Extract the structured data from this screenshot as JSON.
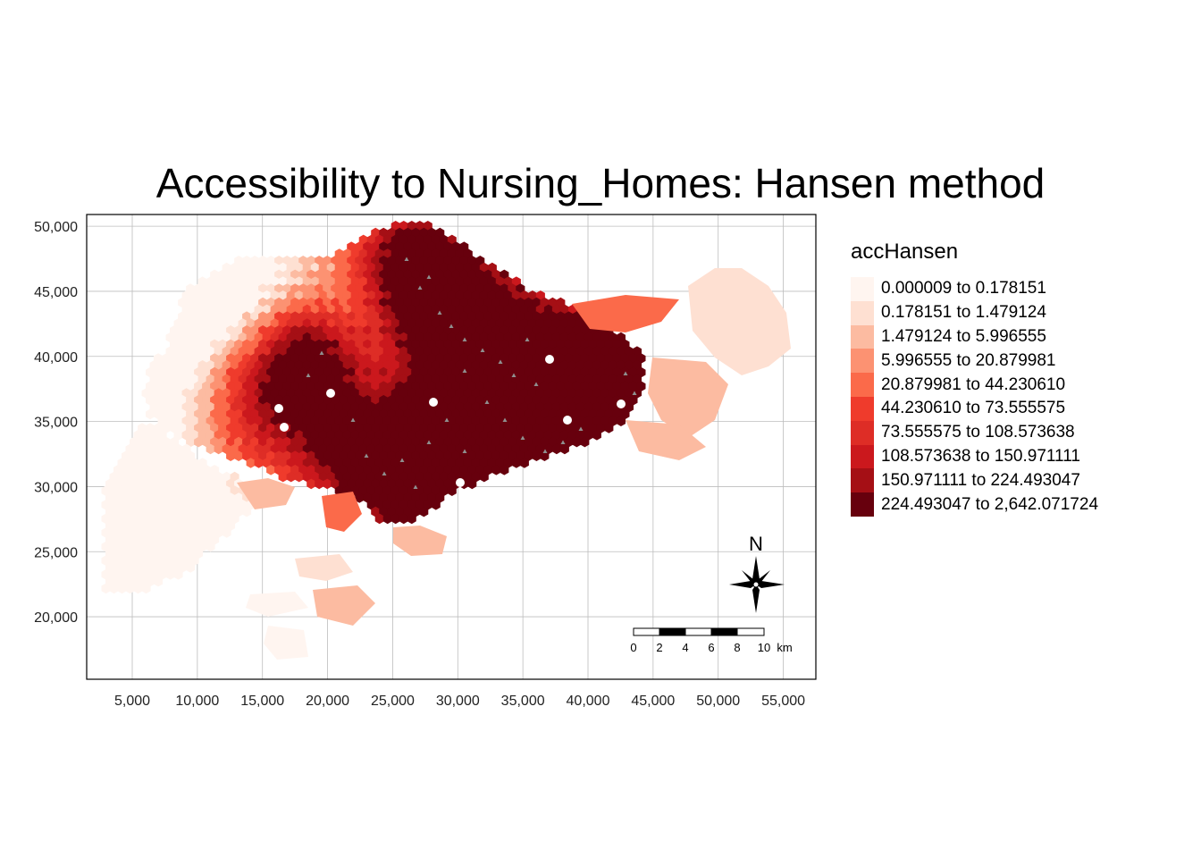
{
  "title": "Accessibility to Nursing_Homes: Hansen method",
  "axes": {
    "x_ticks": [
      "5,000",
      "10,000",
      "15,000",
      "20,000",
      "25,000",
      "30,000",
      "35,000",
      "40,000",
      "45,000",
      "50,000",
      "55,000"
    ],
    "x_values": [
      5000,
      10000,
      15000,
      20000,
      25000,
      30000,
      35000,
      40000,
      45000,
      50000,
      55000
    ],
    "y_ticks": [
      "50,000",
      "45,000",
      "40,000",
      "35,000",
      "30,000",
      "25,000",
      "20,000"
    ],
    "y_values": [
      50000,
      45000,
      40000,
      35000,
      30000,
      25000,
      20000
    ],
    "x_range": [
      1500,
      57500
    ],
    "y_range": [
      15200,
      50900
    ],
    "grid": true
  },
  "legend": {
    "title": "accHansen",
    "placement": "right",
    "classes": [
      {
        "label": "0.000009 to 0.178151",
        "color": "#fff5f0"
      },
      {
        "label": "0.178151 to 1.479124",
        "color": "#fee0d2"
      },
      {
        "label": "1.479124 to 5.996555",
        "color": "#fcbba1"
      },
      {
        "label": "5.996555 to 20.879981",
        "color": "#fc9272"
      },
      {
        "label": "20.879981 to 44.230610",
        "color": "#fb6a4a"
      },
      {
        "label": "44.230610 to 73.555575",
        "color": "#ef3b2c"
      },
      {
        "label": "73.555575 to 108.573638",
        "color": "#de2d26"
      },
      {
        "label": "108.573638 to 150.971111",
        "color": "#cb181d"
      },
      {
        "label": "150.971111 to 224.493047",
        "color": "#a50f15"
      },
      {
        "label": "224.493047 to 2,642.071724",
        "color": "#67000d"
      }
    ]
  },
  "north_arrow": {
    "label": "N"
  },
  "scale_bar": {
    "labels": [
      "0",
      "2",
      "4",
      "6",
      "8",
      "10"
    ],
    "unit": "km"
  }
}
